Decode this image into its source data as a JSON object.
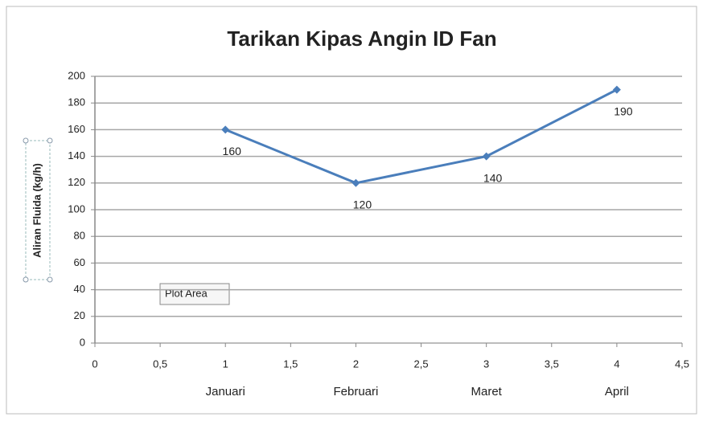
{
  "chart_data": {
    "type": "line",
    "title": "Tarikan Kipas Angin ID Fan",
    "y_label": "Aliran Fluida (kg/h)",
    "x": [
      1,
      2,
      3,
      4
    ],
    "categories": [
      "Januari",
      "Februari",
      "Maret",
      "April"
    ],
    "series": [
      {
        "name": "Aliran Fluida",
        "color": "#4a7ebb",
        "values": [
          160,
          120,
          140,
          190
        ]
      }
    ],
    "xlim": [
      0,
      4.5
    ],
    "xticks": [
      0,
      {
        "value": 0.5,
        "label": "0,5"
      },
      1,
      {
        "value": 1.5,
        "label": "1,5"
      },
      2,
      {
        "value": 2.5,
        "label": "2,5"
      },
      3,
      {
        "value": 3.5,
        "label": "3,5"
      },
      4,
      {
        "value": 4.5,
        "label": "4,5"
      }
    ],
    "ylim": [
      0,
      200
    ],
    "yticks": [
      0,
      20,
      40,
      60,
      80,
      100,
      120,
      140,
      160,
      180,
      200
    ],
    "grid": true,
    "tooltip": "Plot Area"
  }
}
